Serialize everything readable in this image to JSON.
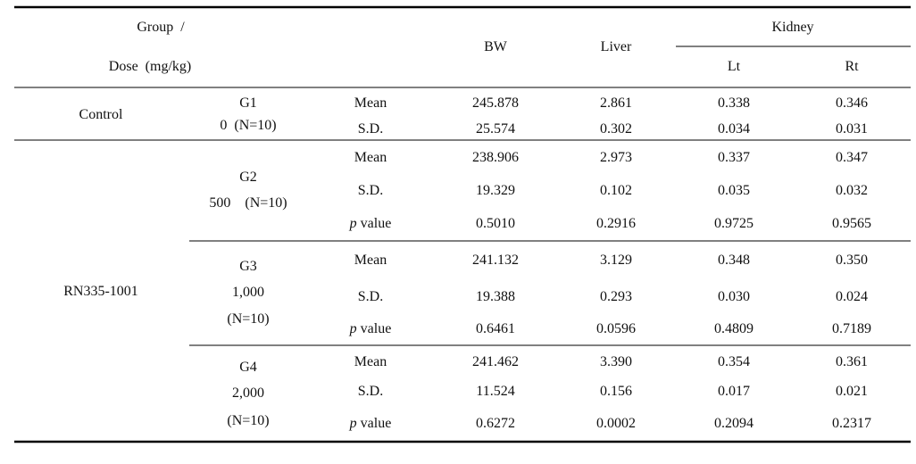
{
  "header": {
    "group": "Group  /",
    "dose": "Dose  (mg/kg)",
    "columns": [
      "BW",
      "Liver"
    ],
    "kidney": {
      "title": "Kidney",
      "sub": [
        "Lt",
        "Rt"
      ]
    }
  },
  "groups": [
    {
      "name": "Control",
      "subgroups": [
        {
          "label": [
            "G1",
            "0  (N=10)"
          ],
          "rows": [
            {
              "stat": "Mean",
              "values": [
                "245.878",
                "2.861",
                "0.338",
                "0.346"
              ]
            },
            {
              "stat": "S.D.",
              "values": [
                "25.574",
                "0.302",
                "0.034",
                "0.031"
              ]
            }
          ]
        }
      ]
    },
    {
      "name": "RN335-1001",
      "subgroups": [
        {
          "label": [
            "G2",
            "500    (N=10)"
          ],
          "rows": [
            {
              "stat": "Mean",
              "values": [
                "238.906",
                "2.973",
                "0.337",
                "0.347"
              ]
            },
            {
              "stat": "S.D.",
              "values": [
                "19.329",
                "0.102",
                "0.035",
                "0.032"
              ]
            },
            {
              "stat": "p value",
              "values": [
                "0.5010",
                "0.2916",
                "0.9725",
                "0.9565"
              ]
            }
          ]
        },
        {
          "label": [
            "G3",
            "1,000",
            "(N=10)"
          ],
          "rows": [
            {
              "stat": "Mean",
              "values": [
                "241.132",
                "3.129",
                "0.348",
                "0.350"
              ]
            },
            {
              "stat": "S.D.",
              "values": [
                "19.388",
                "0.293",
                "0.030",
                "0.024"
              ]
            },
            {
              "stat": "p value",
              "values": [
                "0.6461",
                "0.0596",
                "0.4809",
                "0.7189"
              ]
            }
          ]
        },
        {
          "label": [
            "G4",
            "2,000",
            "(N=10)"
          ],
          "rows": [
            {
              "stat": "Mean",
              "values": [
                "241.462",
                "3.390",
                "0.354",
                "0.361"
              ]
            },
            {
              "stat": "S.D.",
              "values": [
                "11.524",
                "0.156",
                "0.017",
                "0.021"
              ]
            },
            {
              "stat": "p value",
              "values": [
                "0.6272",
                "0.0002",
                "0.2094",
                "0.2317"
              ]
            }
          ]
        }
      ]
    }
  ]
}
